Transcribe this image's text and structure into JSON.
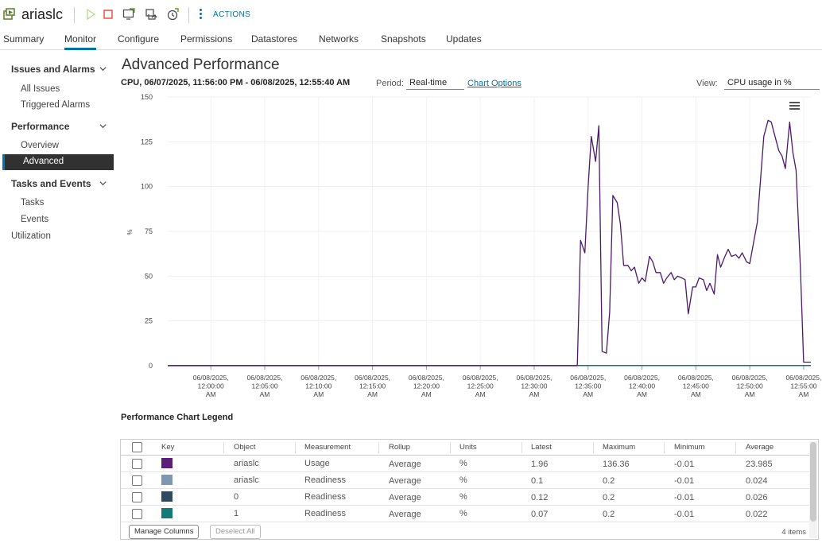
{
  "header": {
    "vm_name": "ariaslc",
    "actions_label": "ACTIONS"
  },
  "tabs": [
    {
      "label": "Summary"
    },
    {
      "label": "Monitor"
    },
    {
      "label": "Configure"
    },
    {
      "label": "Permissions"
    },
    {
      "label": "Datastores"
    },
    {
      "label": "Networks"
    },
    {
      "label": "Snapshots"
    },
    {
      "label": "Updates"
    }
  ],
  "active_tab": "Monitor",
  "sidebar": {
    "issues_header": "Issues and Alarms",
    "all_issues": "All Issues",
    "triggered_alarms": "Triggered Alarms",
    "performance_header": "Performance",
    "overview": "Overview",
    "advanced": "Advanced",
    "tasks_header": "Tasks and Events",
    "tasks": "Tasks",
    "events": "Events",
    "utilization": "Utilization"
  },
  "main": {
    "title": "Advanced Performance",
    "range": "CPU, 06/07/2025, 11:56:00 PM - 06/08/2025, 12:55:40 AM",
    "period_label": "Period:",
    "period_value": "Real-time",
    "chart_options": "Chart Options",
    "view_label": "View:",
    "view_value": "CPU usage in %",
    "legend_title": "Performance Chart Legend"
  },
  "chart_data": {
    "type": "line",
    "ylabel": "%",
    "ylim": [
      0,
      150
    ],
    "y_ticks": [
      0,
      25,
      50,
      75,
      100,
      125,
      150
    ],
    "x_ticks": [
      [
        "06/08/2025,",
        "12:00:00",
        "AM"
      ],
      [
        "06/08/2025,",
        "12:05:00",
        "AM"
      ],
      [
        "06/08/2025,",
        "12:10:00",
        "AM"
      ],
      [
        "06/08/2025,",
        "12:15:00",
        "AM"
      ],
      [
        "06/08/2025,",
        "12:20:00",
        "AM"
      ],
      [
        "06/08/2025,",
        "12:25:00",
        "AM"
      ],
      [
        "06/08/2025,",
        "12:30:00",
        "AM"
      ],
      [
        "06/08/2025,",
        "12:35:00",
        "AM"
      ],
      [
        "06/08/2025,",
        "12:40:00",
        "AM"
      ],
      [
        "06/08/2025,",
        "12:45:00",
        "AM"
      ],
      [
        "06/08/2025,",
        "12:50:00",
        "AM"
      ],
      [
        "06/08/2025,",
        "12:55:00",
        "AM"
      ]
    ],
    "x_tick_minutes": [
      0,
      5,
      10,
      15,
      20,
      25,
      30,
      35,
      40,
      45,
      50,
      55
    ],
    "x_range_minutes": [
      -4,
      55.67
    ],
    "grid": true,
    "series": [
      {
        "name": "ariaslc Usage",
        "color": "#4b1a6b",
        "x": [
          -4,
          34.0,
          34.3,
          34.7,
          35.0,
          35.3,
          35.7,
          36.0,
          36.3,
          36.7,
          37.0,
          37.3,
          37.7,
          38.0,
          38.3,
          38.7,
          39.0,
          39.3,
          39.7,
          40.0,
          40.3,
          40.7,
          41.0,
          41.3,
          41.7,
          42.0,
          42.3,
          42.7,
          43.0,
          43.3,
          43.7,
          44.0,
          44.3,
          44.7,
          45.0,
          45.3,
          45.7,
          46.0,
          46.3,
          46.7,
          47.0,
          47.3,
          47.7,
          48.0,
          48.3,
          48.7,
          49.0,
          49.3,
          49.7,
          50.0,
          50.3,
          50.7,
          51.0,
          51.3,
          51.7,
          52.0,
          52.3,
          52.7,
          53.0,
          53.3,
          53.7,
          54.0,
          54.3,
          54.7,
          55.0,
          55.67
        ],
        "values": [
          0,
          0,
          70,
          63,
          100,
          128,
          114,
          134,
          8,
          7,
          30,
          95,
          91,
          79,
          56,
          56,
          53,
          55,
          46,
          49,
          47,
          61,
          58,
          52,
          52,
          46,
          49,
          52,
          48,
          50,
          49,
          48,
          29,
          44,
          44,
          49,
          48,
          42,
          46,
          40,
          62,
          55,
          61,
          65,
          61,
          62,
          60,
          63,
          58,
          57,
          67,
          80,
          104,
          128,
          137,
          136,
          129,
          120,
          117,
          110,
          136,
          119,
          109,
          55,
          2,
          2
        ]
      },
      {
        "name": "ariaslc Readiness",
        "color": "#7f97b2",
        "x": [
          -4,
          55.67
        ],
        "values": [
          0.1,
          0.1
        ]
      },
      {
        "name": "0 Readiness",
        "color": "#2f4a5f",
        "x": [
          -4,
          55.67
        ],
        "values": [
          0.12,
          0.12
        ]
      },
      {
        "name": "1 Readiness",
        "color": "#137a78",
        "x": [
          -4,
          55.67
        ],
        "values": [
          0.07,
          0.07
        ]
      }
    ]
  },
  "legend_table": {
    "headers": [
      "Key",
      "Object",
      "Measurement",
      "Rollup",
      "Units",
      "Latest",
      "Maximum",
      "Minimum",
      "Average"
    ],
    "rows": [
      {
        "color": "#5b1f7a",
        "object": "ariaslc",
        "measurement": "Usage",
        "rollup": "Average",
        "units": "%",
        "latest": "1.96",
        "maximum": "136.36",
        "minimum": "-0.01",
        "average": "23.985"
      },
      {
        "color": "#7f97b2",
        "object": "ariaslc",
        "measurement": "Readiness",
        "rollup": "Average",
        "units": "%",
        "latest": "0.1",
        "maximum": "0.2",
        "minimum": "-0.01",
        "average": "0.024"
      },
      {
        "color": "#2f4a5f",
        "object": "0",
        "measurement": "Readiness",
        "rollup": "Average",
        "units": "%",
        "latest": "0.12",
        "maximum": "0.2",
        "minimum": "-0.01",
        "average": "0.026"
      },
      {
        "color": "#137a78",
        "object": "1",
        "measurement": "Readiness",
        "rollup": "Average",
        "units": "%",
        "latest": "0.07",
        "maximum": "0.2",
        "minimum": "-0.01",
        "average": "0.022"
      }
    ],
    "manage_columns": "Manage Columns",
    "deselect_all": "Deselect All",
    "items_count": "4 items"
  }
}
